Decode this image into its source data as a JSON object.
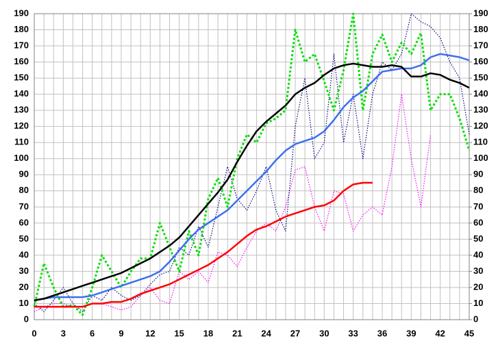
{
  "chart_data": {
    "type": "line",
    "x": [
      0,
      1,
      2,
      3,
      4,
      5,
      6,
      7,
      8,
      9,
      10,
      11,
      12,
      13,
      14,
      15,
      16,
      17,
      18,
      19,
      20,
      21,
      22,
      23,
      24,
      25,
      26,
      27,
      28,
      29,
      30,
      31,
      32,
      33,
      34,
      35,
      36,
      37,
      38,
      39,
      40,
      41,
      42,
      43,
      44,
      45
    ],
    "xlim": [
      0,
      45
    ],
    "xticks": [
      0,
      3,
      6,
      9,
      12,
      15,
      18,
      21,
      24,
      27,
      30,
      33,
      36,
      39,
      42,
      45
    ],
    "ylim": [
      0,
      190
    ],
    "yticks": [
      0,
      10,
      20,
      30,
      40,
      50,
      60,
      70,
      80,
      90,
      100,
      110,
      120,
      130,
      140,
      150,
      160,
      170,
      180,
      190
    ],
    "y2lim": [
      0,
      190
    ],
    "y2ticks": [
      0,
      10,
      20,
      30,
      40,
      50,
      60,
      70,
      80,
      90,
      100,
      110,
      120,
      130,
      140,
      150,
      160,
      170,
      180,
      190
    ],
    "grid": true,
    "series": [
      {
        "color": "#ff00ff",
        "line_style": "thin-dotted",
        "values": [
          5,
          8,
          10,
          10,
          8,
          8,
          10,
          10,
          8,
          6,
          8,
          15,
          20,
          12,
          10,
          30,
          25,
          30,
          23,
          42,
          40,
          33,
          45,
          55,
          60,
          55,
          70,
          93,
          95,
          70,
          55,
          80,
          78,
          55,
          65,
          70,
          65,
          95,
          140,
          100,
          70,
          115,
          null,
          null,
          null,
          null
        ]
      },
      {
        "color": "#000080",
        "line_style": "thin-dotted",
        "values": [
          10,
          5,
          12,
          20,
          10,
          5,
          15,
          12,
          20,
          15,
          12,
          15,
          22,
          28,
          30,
          45,
          40,
          58,
          45,
          70,
          95,
          75,
          68,
          80,
          95,
          68,
          55,
          120,
          150,
          100,
          110,
          165,
          110,
          140,
          100,
          140,
          160,
          155,
          165,
          190,
          185,
          182,
          175,
          160,
          150,
          115
        ]
      },
      {
        "color": "#00e000",
        "line_style": "bold-dotted",
        "values": [
          8,
          35,
          20,
          8,
          9,
          3,
          20,
          40,
          30,
          20,
          30,
          38,
          38,
          60,
          45,
          30,
          55,
          40,
          75,
          88,
          70,
          100,
          115,
          110,
          122,
          125,
          130,
          180,
          160,
          165,
          148,
          130,
          155,
          190,
          130,
          165,
          177,
          160,
          172,
          165,
          178,
          130,
          140,
          140,
          125,
          105
        ]
      },
      {
        "color": "#ff0000",
        "line_style": "solid",
        "values": [
          8,
          8,
          8,
          8,
          8,
          8,
          10,
          10,
          11,
          11,
          13,
          16,
          18,
          20,
          22,
          25,
          28,
          31,
          34,
          38,
          42,
          47,
          52,
          56,
          58,
          61,
          64,
          66,
          68,
          70,
          71,
          74,
          80,
          84,
          85,
          85,
          null,
          null,
          null,
          null,
          null,
          null,
          null,
          null,
          null,
          null
        ]
      },
      {
        "color": "#3c6ef0",
        "line_style": "solid",
        "values": [
          12,
          13,
          14,
          14,
          14,
          14,
          15,
          17,
          19,
          21,
          23,
          25,
          27,
          30,
          36,
          43,
          50,
          56,
          60,
          64,
          68,
          74,
          80,
          86,
          92,
          99,
          105,
          109,
          111,
          113,
          117,
          124,
          132,
          138,
          142,
          148,
          154,
          155,
          156,
          156,
          158,
          163,
          165,
          164,
          163,
          161
        ]
      },
      {
        "color": "#000000",
        "line_style": "solid",
        "values": [
          12,
          13,
          15,
          17,
          19,
          21,
          23,
          25,
          27,
          29,
          32,
          35,
          38,
          42,
          46,
          51,
          58,
          65,
          72,
          79,
          87,
          98,
          108,
          117,
          123,
          128,
          133,
          140,
          144,
          147,
          152,
          156,
          158,
          159,
          158,
          157,
          157,
          158,
          157,
          151,
          151,
          153,
          152,
          149,
          147,
          144
        ]
      }
    ]
  }
}
